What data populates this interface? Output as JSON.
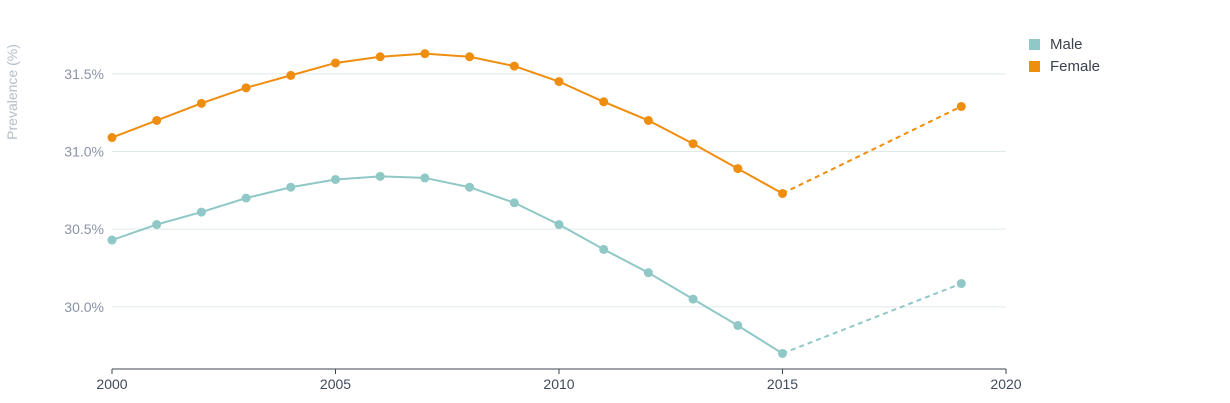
{
  "chart_data": {
    "type": "line",
    "title": "",
    "xlabel": "",
    "ylabel": "Prevalence (%)",
    "x": [
      2000,
      2001,
      2002,
      2003,
      2004,
      2005,
      2006,
      2007,
      2008,
      2009,
      2010,
      2011,
      2012,
      2013,
      2014,
      2015,
      2019
    ],
    "xlim": [
      2000,
      2020
    ],
    "ylim": [
      29.6,
      31.75
    ],
    "x_ticks": [
      "2000",
      "2005",
      "2010",
      "2015",
      "2020"
    ],
    "y_ticks": [
      {
        "value": 30.0,
        "label": "30.0%"
      },
      {
        "value": 30.5,
        "label": "30.5%"
      },
      {
        "value": 31.0,
        "label": "31.0%"
      },
      {
        "value": 31.5,
        "label": "31.5%"
      }
    ],
    "grid": "horizontal",
    "legend_position": "top-right",
    "projection_from_index": 15,
    "series": [
      {
        "name": "Male",
        "color": "#8fc8c6",
        "values": [
          30.43,
          30.53,
          30.61,
          30.7,
          30.77,
          30.82,
          30.84,
          30.83,
          30.77,
          30.67,
          30.53,
          30.37,
          30.22,
          30.05,
          29.88,
          29.7,
          30.15
        ]
      },
      {
        "name": "Female",
        "color": "#ef8d0e",
        "values": [
          31.09,
          31.2,
          31.31,
          31.41,
          31.49,
          31.57,
          31.61,
          31.63,
          31.61,
          31.55,
          31.45,
          31.32,
          31.2,
          31.05,
          30.89,
          30.73,
          31.29
        ]
      }
    ]
  }
}
